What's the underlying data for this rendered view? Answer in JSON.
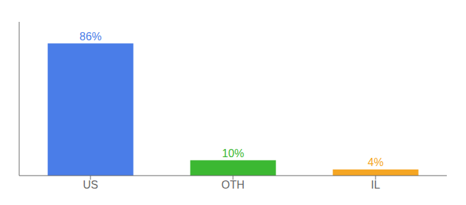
{
  "chart_data": {
    "type": "bar",
    "categories": [
      "US",
      "OTH",
      "IL"
    ],
    "values": [
      86,
      10,
      4
    ],
    "value_labels": [
      "86%",
      "10%",
      "4%"
    ],
    "colors": [
      "#4a7de8",
      "#3cb832",
      "#f5a623"
    ],
    "ylim": [
      0,
      100
    ],
    "data_labels": true,
    "tick_labels": "x",
    "grid": false
  }
}
